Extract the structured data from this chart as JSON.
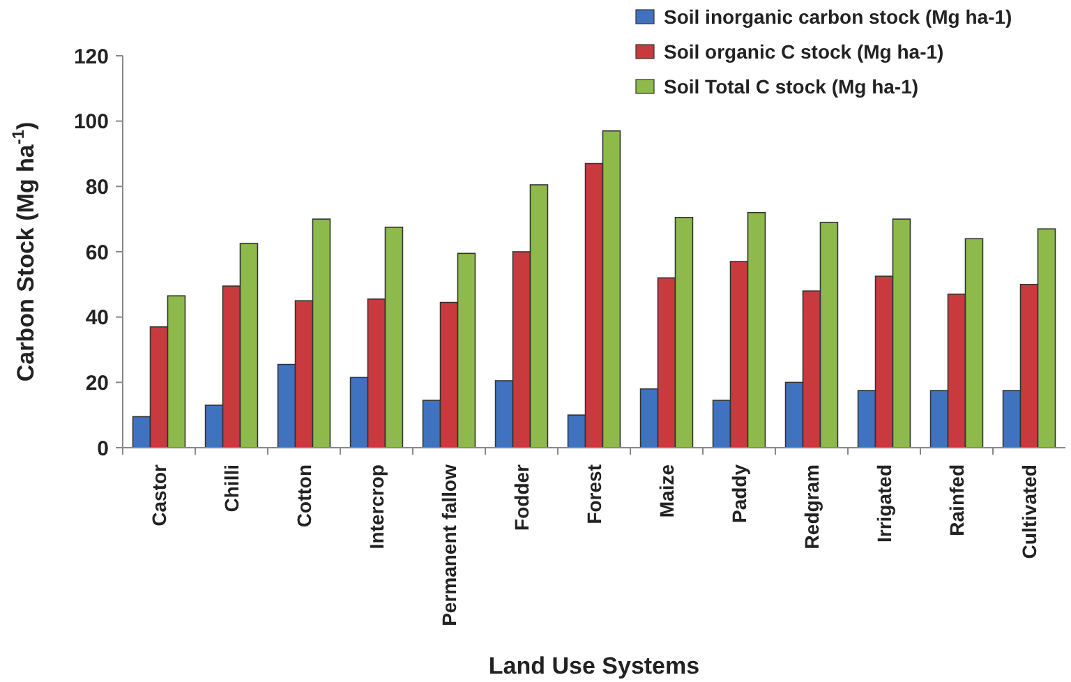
{
  "chart_data": {
    "type": "bar",
    "xlabel": "Land Use Systems",
    "ylabel": "Carbon Stock (Mg ha$^{-1}$)",
    "categories": [
      "Castor",
      "Chilli",
      "Cotton",
      "Intercrop",
      "Permanent fallow",
      "Fodder",
      "Forest",
      "Maize",
      "Paddy",
      "Redgram",
      "Irrigated",
      "Rainfed",
      "Cultivated"
    ],
    "series": [
      {
        "name": "Soil inorganic carbon stock (Mg ha-1)",
        "color": "#3f73c0",
        "values": [
          9.5,
          13,
          25.5,
          21.5,
          14.5,
          20.5,
          10,
          18,
          14.5,
          20,
          17.5,
          17.5,
          17.5
        ]
      },
      {
        "name": "Soil organic C stock (Mg ha-1)",
        "color": "#c93a3f",
        "values": [
          37,
          49.5,
          45,
          45.5,
          44.5,
          60,
          87,
          52,
          57,
          48,
          52.5,
          47,
          50
        ]
      },
      {
        "name": "Soil Total C stock (Mg ha-1)",
        "color": "#8dba4a",
        "values": [
          46.5,
          62.5,
          70,
          67.5,
          59.5,
          80.5,
          97,
          70.5,
          72,
          69,
          70,
          64,
          67
        ]
      }
    ],
    "ylim": [
      0,
      120
    ],
    "yticks": [
      0,
      20,
      40,
      60,
      80,
      100,
      120
    ],
    "grid": false,
    "legend": "top right"
  }
}
